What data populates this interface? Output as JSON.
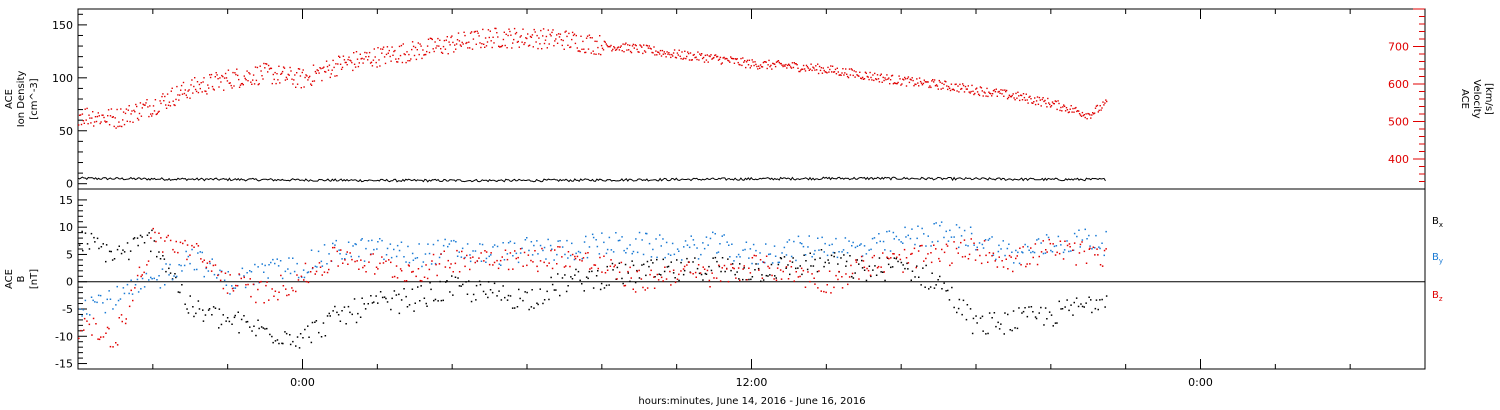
{
  "chart_data": [
    {
      "type": "scatter",
      "panel": "top",
      "ylabel": [
        "ACE",
        "Ion Density",
        "[cm^-3]"
      ],
      "ylim": [
        -5,
        165
      ],
      "yticks": [
        0,
        50,
        100,
        150
      ],
      "y2label": [
        "ACE",
        "Velocity",
        "[km/s]"
      ],
      "y2lim": [
        320,
        800
      ],
      "y2ticks": [
        400,
        500,
        600,
        700
      ],
      "y2_color": "#e00000",
      "series": [
        {
          "name": "",
          "axis": "left",
          "color": "#000000",
          "x_hours": [
            -6,
            -4,
            -2,
            0,
            2,
            4,
            6,
            8,
            10,
            12,
            14,
            16,
            18,
            20,
            21.5
          ],
          "y": [
            5,
            4.5,
            4,
            3.5,
            3,
            3,
            3,
            3.5,
            4,
            4.5,
            5,
            5,
            4.5,
            4,
            4
          ]
        },
        {
          "name": "",
          "axis": "right",
          "color": "#e00000",
          "x_hours": [
            -6,
            -5,
            -4,
            -3,
            -2,
            -1,
            0,
            1,
            2,
            3,
            4,
            5,
            6,
            7,
            8,
            9,
            10,
            11,
            12,
            13,
            14,
            15,
            16,
            17,
            18,
            19,
            20,
            21,
            21.5
          ],
          "y": [
            520,
            510,
            545,
            590,
            615,
            630,
            615,
            655,
            675,
            690,
            710,
            725,
            725,
            720,
            705,
            695,
            680,
            670,
            655,
            650,
            640,
            625,
            610,
            600,
            585,
            570,
            550,
            520,
            550
          ]
        }
      ]
    },
    {
      "type": "scatter",
      "panel": "bottom",
      "ylabel": [
        "ACE",
        "B",
        "[nT]"
      ],
      "ylim": [
        -16,
        17
      ],
      "yticks": [
        -15,
        -10,
        -5,
        0,
        5,
        10,
        15
      ],
      "xlabel": "hours:minutes, June 14, 2016 - June 16, 2016",
      "xlim_hours": [
        -6,
        30
      ],
      "xticks": [
        {
          "value": 0,
          "label": "0:00"
        },
        {
          "value": 12,
          "label": "12:00"
        },
        {
          "value": 24,
          "label": "0:00"
        }
      ],
      "legend_position": "right",
      "series": [
        {
          "name": "Bx",
          "label_base": "B",
          "label_sub": "x",
          "color": "#000000",
          "x_hours": [
            -6,
            -5,
            -4,
            -3,
            -2,
            -1,
            0,
            1,
            2,
            3,
            4,
            5,
            6,
            7,
            8,
            9,
            10,
            11,
            12,
            13,
            14,
            15,
            16,
            17,
            18,
            19,
            20,
            21,
            21.5
          ],
          "y": [
            8,
            5,
            8,
            -5,
            -7,
            -9,
            -10,
            -6,
            -4,
            -3,
            -1,
            -2,
            -3,
            0,
            1,
            2,
            2,
            3,
            2,
            3,
            4,
            2,
            3,
            0,
            -8,
            -7,
            -6,
            -4,
            -2
          ]
        },
        {
          "name": "By",
          "label_base": "B",
          "label_sub": "y",
          "color": "#1a7ad4",
          "x_hours": [
            -6,
            -5,
            -4,
            -3,
            -2,
            -1,
            0,
            1,
            2,
            3,
            4,
            5,
            6,
            7,
            8,
            9,
            10,
            11,
            12,
            13,
            14,
            15,
            16,
            17,
            18,
            19,
            20,
            21,
            21.5
          ],
          "y": [
            -4,
            -3,
            0,
            5,
            0,
            2,
            3,
            6,
            6,
            5,
            6,
            5,
            6,
            6,
            7,
            7,
            6,
            7,
            5,
            6,
            7,
            6,
            8,
            9,
            8,
            5,
            7,
            8,
            7
          ]
        },
        {
          "name": "Bz",
          "label_base": "B",
          "label_sub": "z",
          "color": "#e00000",
          "x_hours": [
            -6,
            -5,
            -4,
            -3,
            -2,
            -1,
            0,
            1,
            2,
            3,
            4,
            5,
            6,
            7,
            8,
            9,
            10,
            11,
            12,
            13,
            14,
            15,
            16,
            17,
            18,
            19,
            20,
            21,
            21.5
          ],
          "y": [
            -8,
            -10,
            8,
            6,
            0,
            -2,
            1,
            5,
            3,
            2,
            4,
            5,
            4,
            5,
            3,
            0,
            2,
            1,
            3,
            2,
            0,
            3,
            4,
            5,
            6,
            4,
            6,
            5,
            5
          ]
        }
      ]
    }
  ]
}
